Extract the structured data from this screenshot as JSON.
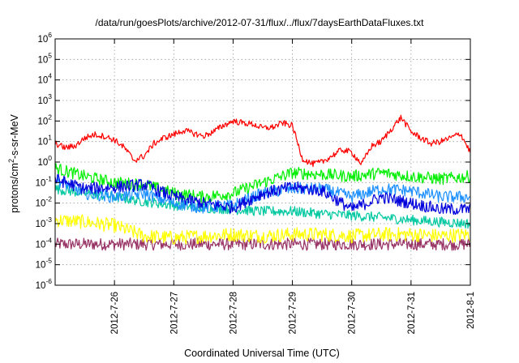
{
  "chart_data": {
    "type": "line",
    "title": "/data/run/goesPlots/archive/2012-07-31/flux/../flux/7daysEarthDataFluxes.txt",
    "xlabel": "Coordinated Universal Time (UTC)",
    "ylabel_parts": [
      "protons/cm",
      "2",
      "-s-sr-MeV"
    ],
    "y_scale": "log",
    "ylim": [
      1e-06,
      1000000.0
    ],
    "y_ticks": [
      {
        "base": "10",
        "exp": "-6",
        "value": 1e-06
      },
      {
        "base": "10",
        "exp": "-5",
        "value": 1e-05
      },
      {
        "base": "10",
        "exp": "-4",
        "value": 0.0001
      },
      {
        "base": "10",
        "exp": "-3",
        "value": 0.001
      },
      {
        "base": "10",
        "exp": "-2",
        "value": 0.01
      },
      {
        "base": "10",
        "exp": "-1",
        "value": 0.1
      },
      {
        "base": "10",
        "exp": "0",
        "value": 1.0
      },
      {
        "base": "10",
        "exp": "1",
        "value": 10.0
      },
      {
        "base": "10",
        "exp": "2",
        "value": 100.0
      },
      {
        "base": "10",
        "exp": "3",
        "value": 1000.0
      },
      {
        "base": "10",
        "exp": "4",
        "value": 10000.0
      },
      {
        "base": "10",
        "exp": "5",
        "value": 100000.0
      },
      {
        "base": "10",
        "exp": "6",
        "value": 1000000.0
      }
    ],
    "xlim": [
      "2012-07-25",
      "2012-08-01"
    ],
    "x_ticks": [
      "2012-7-26",
      "2012-7-27",
      "2012-7-28",
      "2012-7-29",
      "2012-7-30",
      "2012-7-31",
      "2012-8-1"
    ],
    "grid": true,
    "series": [
      {
        "color": "#ff0000",
        "noise": 0.15,
        "x": [
          "2012-07-25 00:00",
          "2012-07-25 04:00",
          "2012-07-25 08:00",
          "2012-07-25 12:00",
          "2012-07-25 16:00",
          "2012-07-25 20:00",
          "2012-07-26 00:00",
          "2012-07-26 04:00",
          "2012-07-26 08:00",
          "2012-07-26 12:00",
          "2012-07-26 16:00",
          "2012-07-26 20:00",
          "2012-07-27 00:00",
          "2012-07-27 04:00",
          "2012-07-27 08:00",
          "2012-07-27 12:00",
          "2012-07-27 16:00",
          "2012-07-27 20:00",
          "2012-07-28 00:00",
          "2012-07-28 04:00",
          "2012-07-28 08:00",
          "2012-07-28 12:00",
          "2012-07-28 16:00",
          "2012-07-28 20:00",
          "2012-07-29 00:00",
          "2012-07-29 04:00",
          "2012-07-29 08:00",
          "2012-07-29 12:00",
          "2012-07-29 16:00",
          "2012-07-29 20:00",
          "2012-07-30 00:00",
          "2012-07-30 04:00",
          "2012-07-30 08:00",
          "2012-07-30 12:00",
          "2012-07-30 16:00",
          "2012-07-30 20:00",
          "2012-07-31 00:00",
          "2012-07-31 04:00",
          "2012-07-31 08:00",
          "2012-07-31 12:00",
          "2012-07-31 16:00",
          "2012-07-31 20:00",
          "2012-08-01 00:00"
        ],
        "y": [
          8,
          5,
          6,
          15,
          22,
          18,
          12,
          5,
          1.2,
          2,
          8,
          15,
          22,
          35,
          25,
          18,
          30,
          60,
          100,
          80,
          70,
          45,
          50,
          80,
          60,
          1.5,
          0.8,
          1,
          2,
          4,
          3,
          0.8,
          6,
          10,
          40,
          150,
          30,
          15,
          8,
          10,
          15,
          25,
          3
        ]
      },
      {
        "color": "#00ee00",
        "noise": 0.3,
        "x": [
          "2012-07-25 00:00",
          "2012-07-25 12:00",
          "2012-07-26 00:00",
          "2012-07-26 12:00",
          "2012-07-27 00:00",
          "2012-07-27 12:00",
          "2012-07-28 00:00",
          "2012-07-28 12:00",
          "2012-07-29 00:00",
          "2012-07-29 12:00",
          "2012-07-30 00:00",
          "2012-07-30 12:00",
          "2012-07-31 00:00",
          "2012-07-31 12:00",
          "2012-08-01 00:00"
        ],
        "y": [
          0.5,
          0.2,
          0.1,
          0.08,
          0.03,
          0.02,
          0.03,
          0.1,
          0.3,
          0.25,
          0.2,
          0.3,
          0.2,
          0.15,
          0.2
        ]
      },
      {
        "color": "#1e90ff",
        "noise": 0.3,
        "x": [
          "2012-07-25 00:00",
          "2012-07-25 12:00",
          "2012-07-26 00:00",
          "2012-07-26 12:00",
          "2012-07-27 00:00",
          "2012-07-27 12:00",
          "2012-07-28 00:00",
          "2012-07-28 12:00",
          "2012-07-29 00:00",
          "2012-07-29 12:00",
          "2012-07-30 00:00",
          "2012-07-30 12:00",
          "2012-07-31 00:00",
          "2012-07-31 12:00",
          "2012-08-01 00:00"
        ],
        "y": [
          0.15,
          0.03,
          0.02,
          0.03,
          0.01,
          0.006,
          0.008,
          0.03,
          0.05,
          0.05,
          0.02,
          0.05,
          0.04,
          0.02,
          0.02
        ]
      },
      {
        "color": "#0000dd",
        "noise": 0.3,
        "x": [
          "2012-07-25 00:00",
          "2012-07-25 12:00",
          "2012-07-26 00:00",
          "2012-07-26 12:00",
          "2012-07-27 00:00",
          "2012-07-27 12:00",
          "2012-07-28 00:00",
          "2012-07-28 12:00",
          "2012-07-29 00:00",
          "2012-07-29 12:00",
          "2012-07-30 00:00",
          "2012-07-30 12:00",
          "2012-07-31 00:00",
          "2012-07-31 12:00",
          "2012-08-01 00:00"
        ],
        "y": [
          0.15,
          0.05,
          0.06,
          0.08,
          0.02,
          0.01,
          0.006,
          0.03,
          0.06,
          0.04,
          0.005,
          0.02,
          0.01,
          0.005,
          0.005
        ]
      },
      {
        "color": "#00c8a0",
        "noise": 0.25,
        "x": [
          "2012-07-25 00:00",
          "2012-07-25 12:00",
          "2012-07-26 00:00",
          "2012-07-26 12:00",
          "2012-07-27 00:00",
          "2012-07-27 12:00",
          "2012-07-28 00:00",
          "2012-07-28 12:00",
          "2012-07-29 00:00",
          "2012-07-29 12:00",
          "2012-07-30 00:00",
          "2012-07-30 12:00",
          "2012-07-31 00:00",
          "2012-07-31 12:00",
          "2012-08-01 00:00"
        ],
        "y": [
          0.05,
          0.03,
          0.02,
          0.012,
          0.008,
          0.006,
          0.005,
          0.004,
          0.004,
          0.003,
          0.0025,
          0.002,
          0.0015,
          0.0012,
          0.001
        ]
      },
      {
        "color": "#ffff00",
        "noise": 0.35,
        "x": [
          "2012-07-25 00:00",
          "2012-07-25 12:00",
          "2012-07-26 00:00",
          "2012-07-26 12:00",
          "2012-07-27 00:00",
          "2012-07-27 12:00",
          "2012-07-28 00:00",
          "2012-07-28 12:00",
          "2012-07-29 00:00",
          "2012-07-29 12:00",
          "2012-07-30 00:00",
          "2012-07-30 12:00",
          "2012-07-31 00:00",
          "2012-07-31 12:00",
          "2012-08-01 00:00"
        ],
        "y": [
          0.0015,
          0.0012,
          0.0008,
          0.00025,
          0.0002,
          0.00025,
          0.0003,
          0.00025,
          0.0003,
          0.0003,
          0.00025,
          0.0003,
          0.0003,
          0.00025,
          0.0003
        ]
      },
      {
        "color": "#993366",
        "noise": 0.3,
        "x": [
          "2012-07-25 00:00",
          "2012-07-25 12:00",
          "2012-07-26 00:00",
          "2012-07-26 12:00",
          "2012-07-27 00:00",
          "2012-07-27 12:00",
          "2012-07-28 00:00",
          "2012-07-28 12:00",
          "2012-07-29 00:00",
          "2012-07-29 12:00",
          "2012-07-30 00:00",
          "2012-07-30 12:00",
          "2012-07-31 00:00",
          "2012-07-31 12:00",
          "2012-08-01 00:00"
        ],
        "y": [
          0.0001,
          0.0001,
          0.0001,
          0.0001,
          0.0001,
          0.0001,
          0.0001,
          0.0001,
          0.0001,
          0.0001,
          0.0001,
          0.0001,
          0.0001,
          0.0001,
          0.0001
        ]
      }
    ]
  }
}
